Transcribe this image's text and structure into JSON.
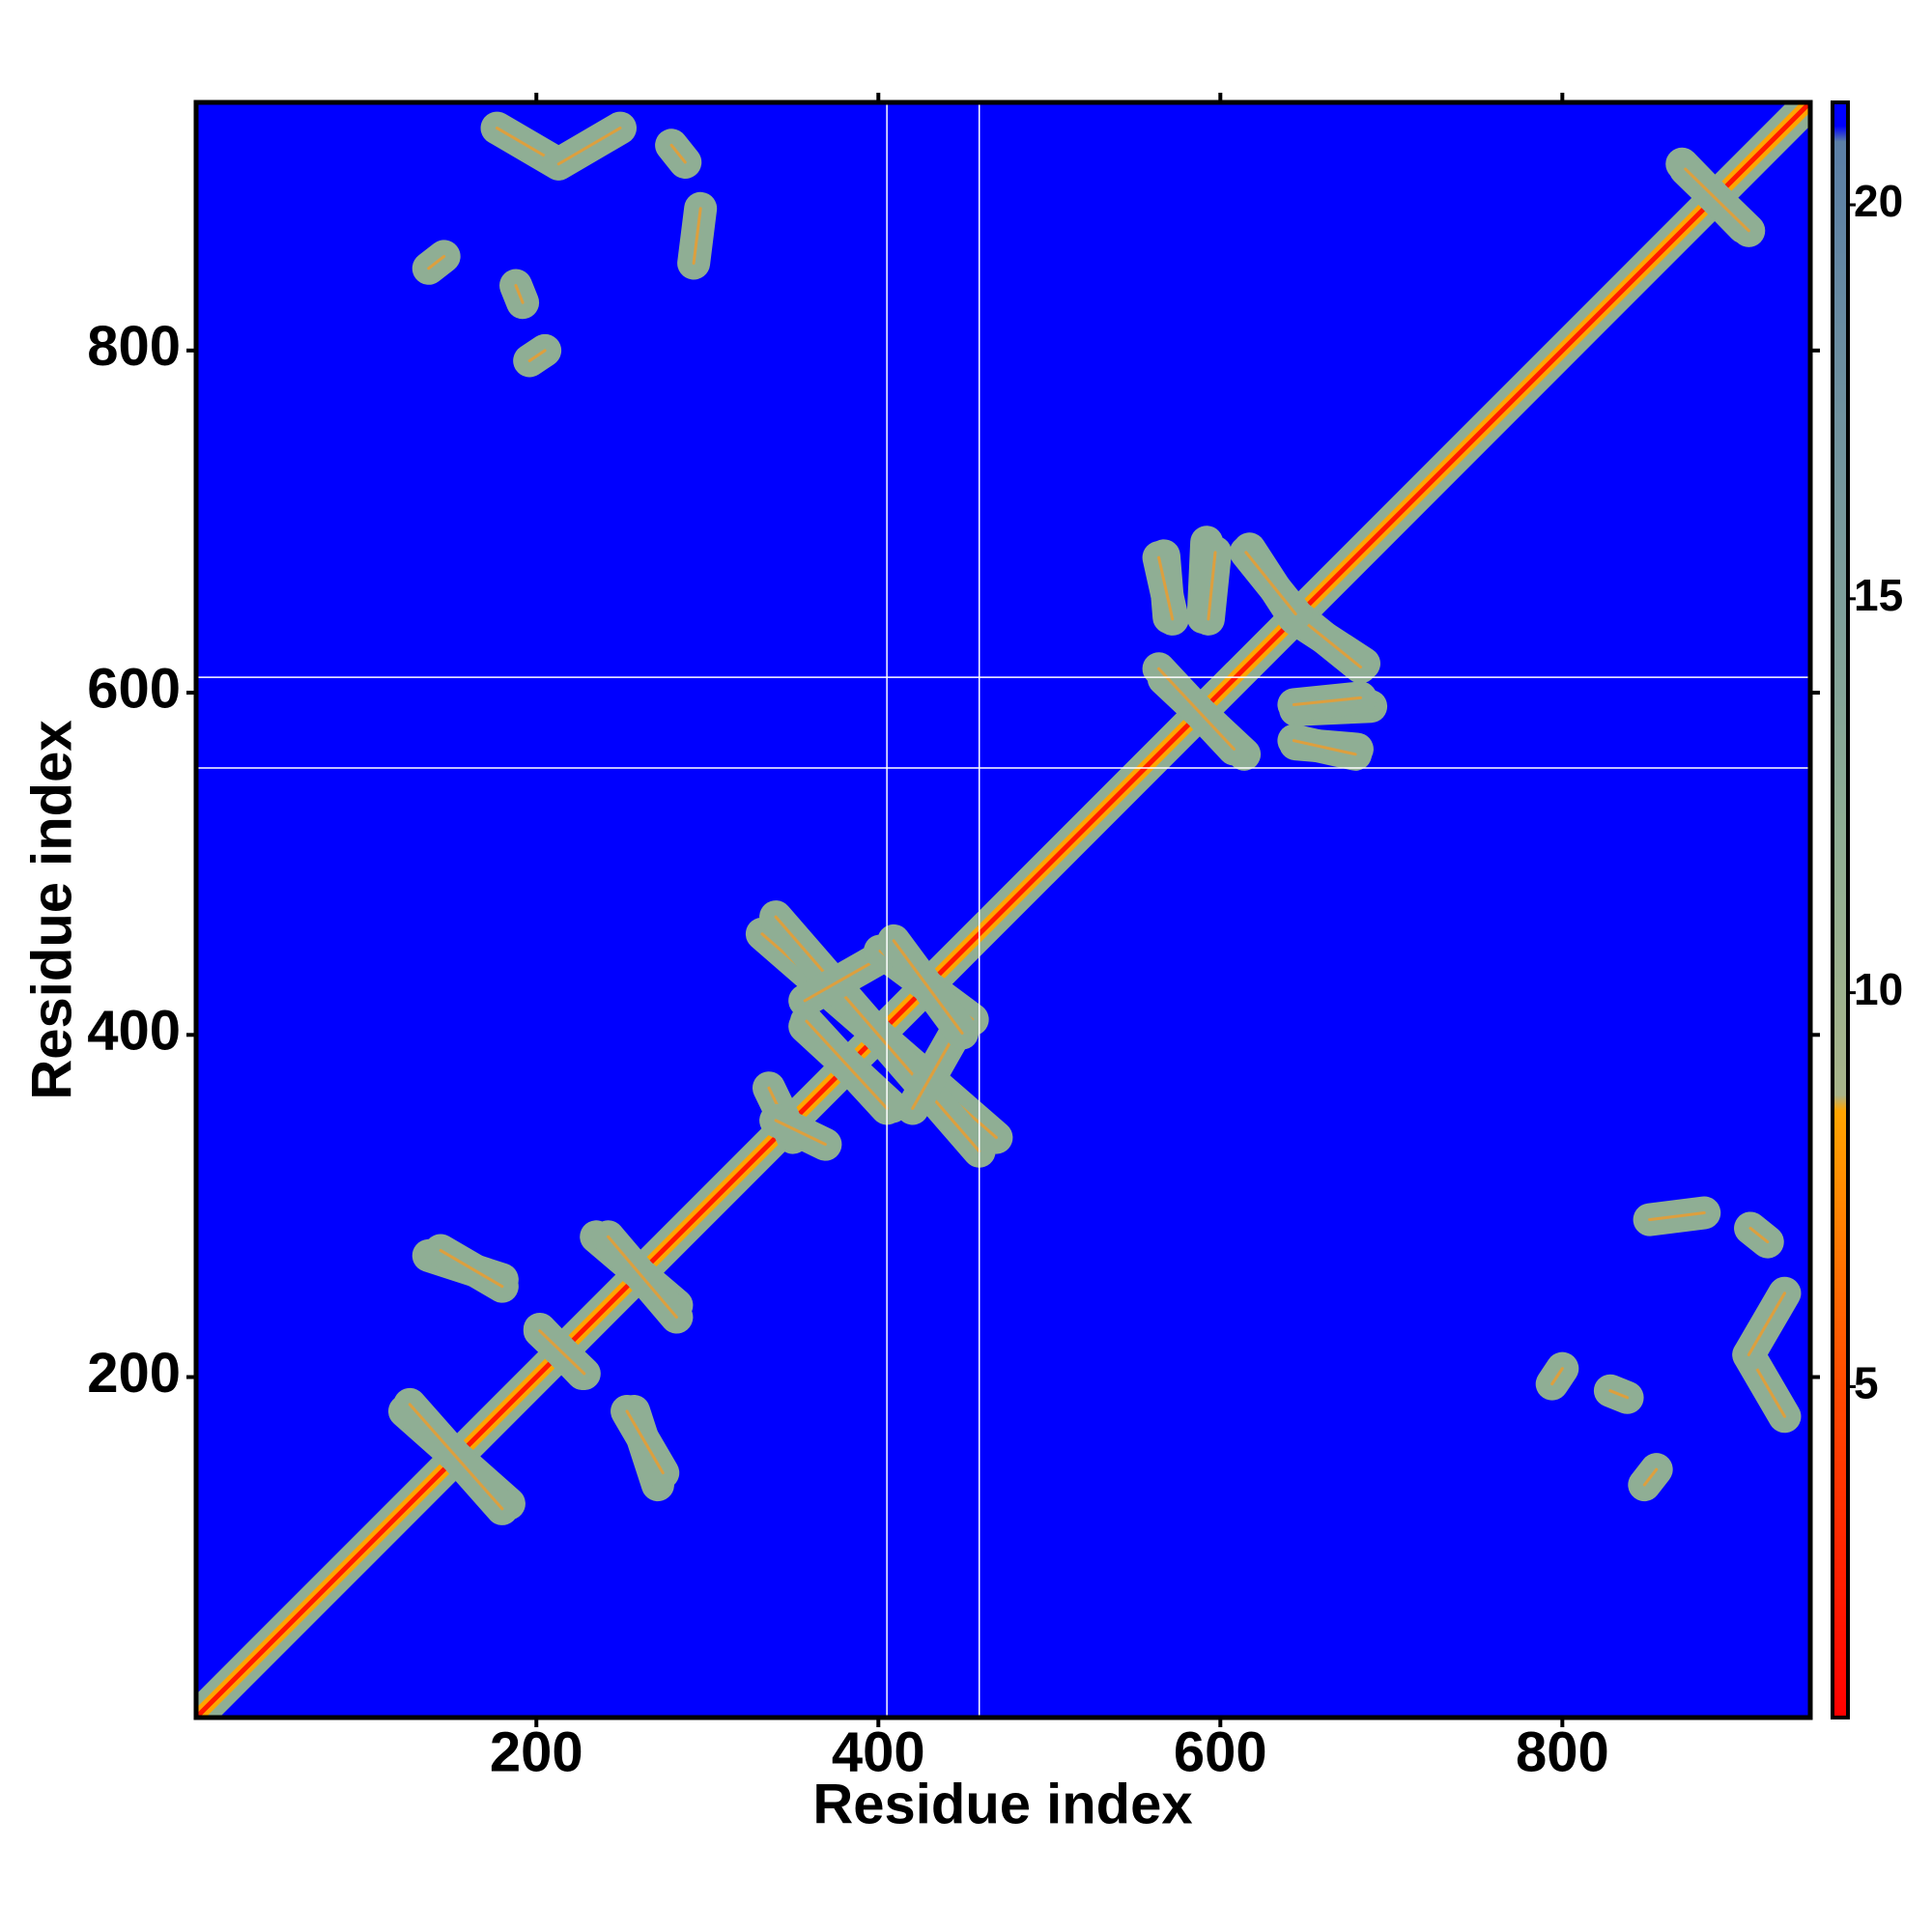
{
  "chart_data": {
    "type": "contact_map",
    "xlabel": "Residue index",
    "ylabel": "Residue index",
    "xlim": [
      1,
      945
    ],
    "ylim": [
      1,
      945
    ],
    "xticks": [
      200,
      400,
      600,
      800
    ],
    "yticks": [
      200,
      400,
      600,
      800
    ],
    "background": "#0000ff",
    "symmetric": true,
    "contact_color": "#8fae94",
    "core_color": "#ff9a1a",
    "diagonal_colors": [
      "#8fae94",
      "#ffa500",
      "#ff1a00"
    ],
    "gap_line_color": "#ffffff",
    "vlines": [
      405,
      459
    ],
    "hlines": [
      609,
      556
    ],
    "segments": [
      {
        "x": [
          177,
          213
        ],
        "y": [
          930,
          909
        ]
      },
      {
        "x": [
          213,
          249
        ],
        "y": [
          909,
          930
        ]
      },
      {
        "x": [
          279,
          287
        ],
        "y": [
          920,
          910
        ]
      },
      {
        "x": [
          296,
          292
        ],
        "y": [
          883,
          851
        ]
      },
      {
        "x": [
          137,
          146
        ],
        "y": [
          848,
          855
        ]
      },
      {
        "x": [
          188,
          192
        ],
        "y": [
          838,
          828
        ]
      },
      {
        "x": [
          196,
          205
        ],
        "y": [
          794,
          800
        ]
      },
      {
        "x": [
          123,
          184
        ],
        "y": [
          180,
          126
        ]
      },
      {
        "x": [
          235,
          282
        ],
        "y": [
          282,
          242
        ]
      },
      {
        "x": [
          202,
          227
        ],
        "y": [
          228,
          202
        ]
      },
      {
        "x": [
          137,
          180
        ],
        "y": [
          271,
          257
        ]
      },
      {
        "x": [
          253,
          274
        ],
        "y": [
          180,
          144
        ]
      },
      {
        "x": [
          332,
          469
        ],
        "y": [
          459,
          340
        ]
      },
      {
        "x": [
          357,
          408
        ],
        "y": [
          420,
          449
        ]
      },
      {
        "x": [
          401,
          455
        ],
        "y": [
          449,
          409
        ]
      },
      {
        "x": [
          357,
          408
        ],
        "y": [
          405,
          358
        ]
      },
      {
        "x": [
          336,
          350
        ],
        "y": [
          369,
          340
        ]
      },
      {
        "x": [
          567,
          614
        ],
        "y": [
          608,
          564
        ]
      },
      {
        "x": [
          567,
          570
        ],
        "y": [
          680,
          644
        ]
      },
      {
        "x": [
          592,
          590
        ],
        "y": [
          688,
          644
        ]
      },
      {
        "x": [
          617,
          643
        ],
        "y": [
          684,
          644
        ]
      },
      {
        "x": [
          646,
          682
        ],
        "y": [
          644,
          615
        ]
      },
      {
        "x": [
          643,
          682
        ],
        "y": [
          593,
          597
        ]
      },
      {
        "x": [
          643,
          679
        ],
        "y": [
          572,
          564
        ]
      },
      {
        "x": [
          870,
          906
        ],
        "y": [
          909,
          872
        ]
      }
    ],
    "colorbar": {
      "lim": [
        0.8,
        21.3
      ],
      "ticks": [
        5,
        10,
        15,
        20
      ],
      "stops": [
        {
          "value": 0.8,
          "color": "#ff0000"
        },
        {
          "value": 5,
          "color": "#ff4a00"
        },
        {
          "value": 8.5,
          "color": "#ffa500"
        },
        {
          "value": 8.7,
          "color": "#a8b48a"
        },
        {
          "value": 12,
          "color": "#8fae94"
        },
        {
          "value": 20.8,
          "color": "#5b7fa6"
        },
        {
          "value": 21,
          "color": "#0000ff"
        }
      ]
    }
  }
}
